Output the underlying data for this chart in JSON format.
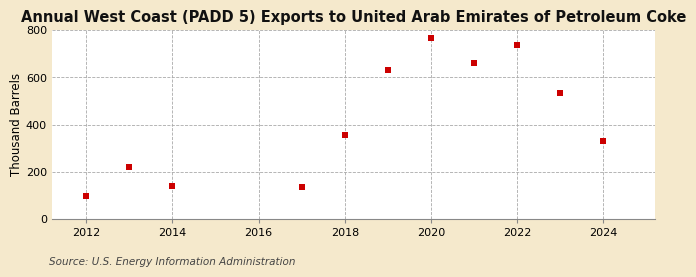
{
  "title": "Annual West Coast (PADD 5) Exports to United Arab Emirates of Petroleum Coke",
  "ylabel": "Thousand Barrels",
  "source": "Source: U.S. Energy Information Administration",
  "years": [
    2012,
    2013,
    2014,
    2017,
    2018,
    2019,
    2020,
    2021,
    2022,
    2023,
    2024
  ],
  "values": [
    100,
    220,
    140,
    135,
    355,
    630,
    765,
    660,
    735,
    535,
    330
  ],
  "ylim": [
    0,
    800
  ],
  "yticks": [
    0,
    200,
    400,
    600,
    800
  ],
  "xticks": [
    2012,
    2014,
    2016,
    2018,
    2020,
    2022,
    2024
  ],
  "xlim": [
    2011.2,
    2025.2
  ],
  "marker_color": "#cc0000",
  "marker": "s",
  "marker_size": 4,
  "fig_bg_color": "#f5e9cc",
  "plot_bg_color": "#ffffff",
  "grid_color": "#aaaaaa",
  "title_fontsize": 10.5,
  "label_fontsize": 8.5,
  "tick_fontsize": 8,
  "source_fontsize": 7.5
}
